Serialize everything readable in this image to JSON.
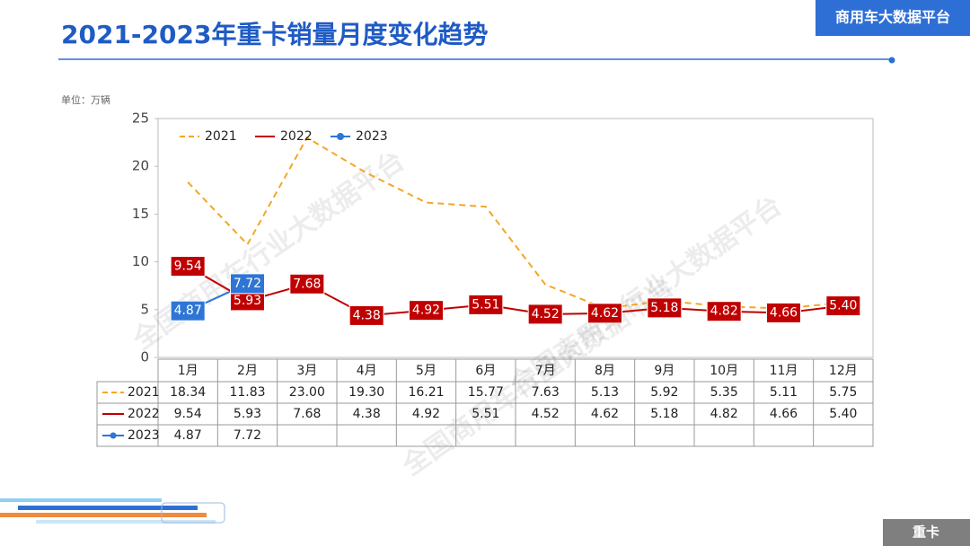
{
  "header": {
    "title": "2021-2023年重卡销量月度变化趋势",
    "badge": "商用车大数据平台",
    "unit": "单位：万辆",
    "footer": "重卡",
    "watermark": "全国商用车行业大数据平台"
  },
  "chart_data": {
    "type": "line",
    "categories": [
      "1月",
      "2月",
      "3月",
      "4月",
      "5月",
      "6月",
      "7月",
      "8月",
      "9月",
      "10月",
      "11月",
      "12月"
    ],
    "series": [
      {
        "name": "2021",
        "color": "#f5a623",
        "dashed": true,
        "markers": false,
        "labels": false,
        "values": [
          18.34,
          11.83,
          23,
          19.3,
          16.21,
          15.77,
          7.63,
          5.13,
          5.92,
          5.35,
          5.11,
          5.75
        ],
        "value_labels": [
          "18.34",
          "11.83",
          "23.00",
          "19.30",
          "16.21",
          "15.77",
          "7.63",
          "5.13",
          "5.92",
          "5.35",
          "5.11",
          "5.75"
        ]
      },
      {
        "name": "2022",
        "color": "#c00000",
        "dashed": false,
        "markers": false,
        "labels": true,
        "values": [
          9.54,
          5.93,
          7.68,
          4.38,
          4.92,
          5.51,
          4.52,
          4.62,
          5.18,
          4.82,
          4.66,
          5.4
        ],
        "value_labels": [
          "9.54",
          "5.93",
          "7.68",
          "4.38",
          "4.92",
          "5.51",
          "4.52",
          "4.62",
          "5.18",
          "4.82",
          "4.66",
          "5.40"
        ]
      },
      {
        "name": "2023",
        "color": "#2e75d6",
        "dashed": false,
        "markers": true,
        "labels": true,
        "values": [
          4.87,
          7.72,
          null,
          null,
          null,
          null,
          null,
          null,
          null,
          null,
          null,
          null
        ],
        "value_labels": [
          "4.87",
          "7.72",
          null,
          null,
          null,
          null,
          null,
          null,
          null,
          null,
          null,
          null
        ]
      }
    ],
    "ylim": [
      0,
      25
    ],
    "yticks": [
      0,
      5,
      10,
      15,
      20,
      25
    ],
    "grid": false,
    "legend": "top-left"
  }
}
